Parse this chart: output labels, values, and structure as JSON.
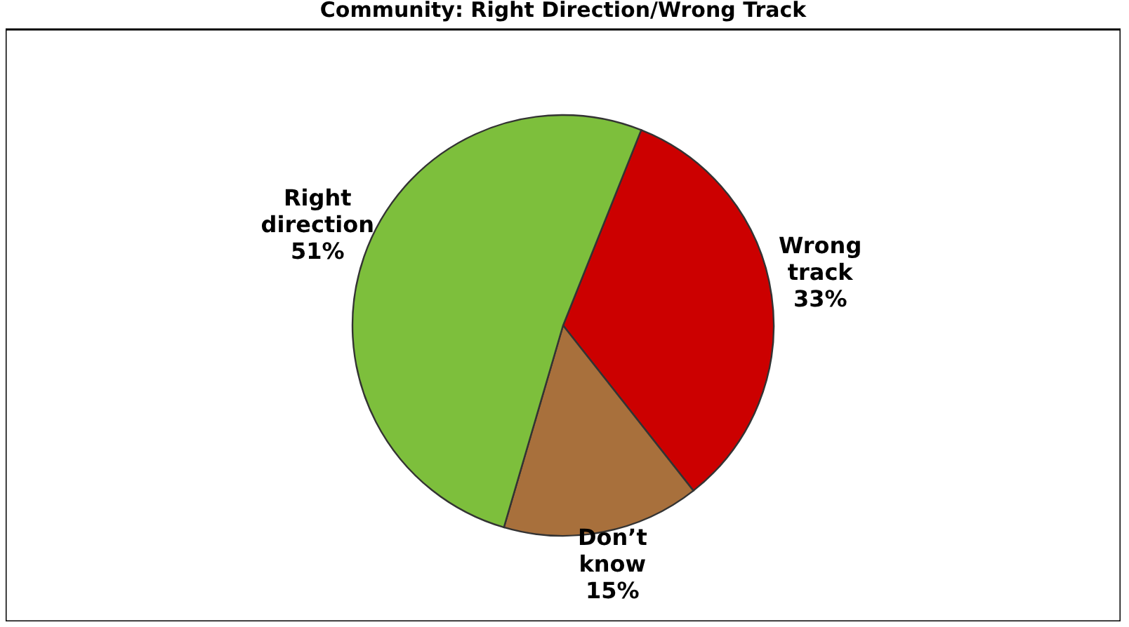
{
  "chart_data": {
    "type": "pie",
    "title": "Community: Right Direction/Wrong Track",
    "categories": [
      "Wrong track",
      "Don’t know",
      "Right direction"
    ],
    "values": [
      33,
      15,
      51
    ],
    "value_labels": [
      "33%",
      "15%",
      "51%"
    ],
    "colors": [
      "#cc0000",
      "#a8703c",
      "#7dbf3c"
    ],
    "legend": false
  }
}
